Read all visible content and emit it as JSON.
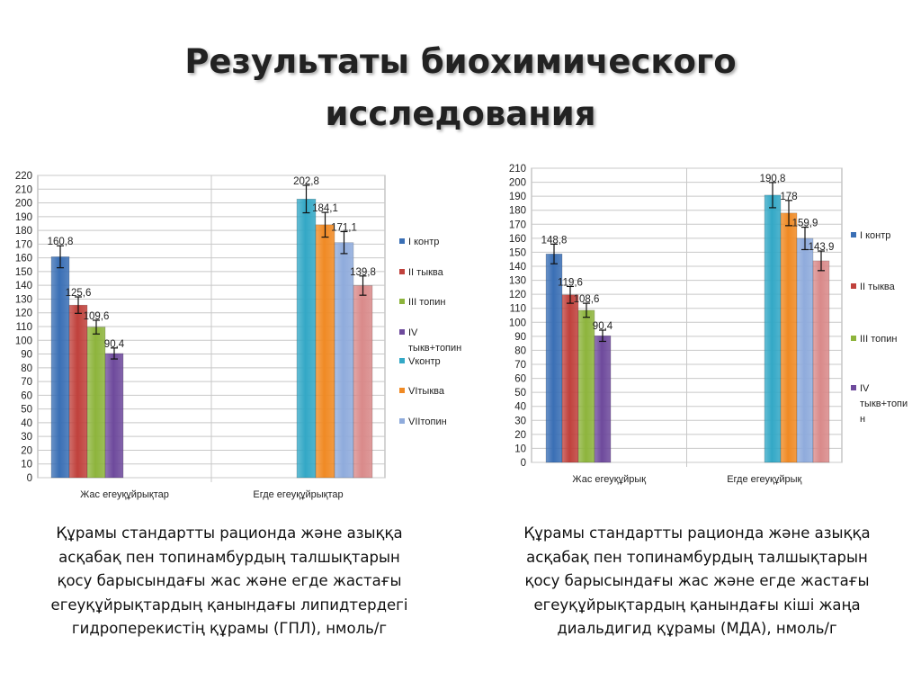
{
  "title": [
    "Результаты биохимического",
    "исследования"
  ],
  "chart_data": [
    {
      "type": "bar",
      "categories": [
        "Жас егеуқұйрықтар",
        "Егде егеуқұйрықтар"
      ],
      "ylim": [
        0,
        220
      ],
      "ytick_step": 10,
      "grid": true,
      "legend_position": "right",
      "legend": [
        {
          "label": "I контр",
          "color": "#3a6fb5"
        },
        {
          "label": "II тыква",
          "color": "#c0413c"
        },
        {
          "label": "III топин",
          "color": "#8db43c"
        },
        {
          "label": "IV тыкв+топин",
          "color": "#6e4a9c"
        },
        {
          "label": "Vконтр",
          "color": "#33a8c6"
        },
        {
          "label": "VIтыква",
          "color": "#f08a24"
        },
        {
          "label": "VIIтопин",
          "color": "#8fabdc"
        }
      ],
      "bars": [
        {
          "category": 0,
          "value": 160.8,
          "label": "160,8",
          "error": 8,
          "color": "#3a6fb5"
        },
        {
          "category": 0,
          "value": 125.6,
          "label": "125,6",
          "error": 6,
          "color": "#c0413c"
        },
        {
          "category": 0,
          "value": 109.6,
          "label": "109,6",
          "error": 5,
          "color": "#8db43c"
        },
        {
          "category": 0,
          "value": 90.4,
          "label": "90,4",
          "error": 4,
          "color": "#6e4a9c"
        },
        {
          "category": 1,
          "value": 202.8,
          "label": "202,8",
          "error": 10,
          "color": "#33a8c6"
        },
        {
          "category": 1,
          "value": 184.1,
          "label": "184,1",
          "error": 9,
          "color": "#f08a24"
        },
        {
          "category": 1,
          "value": 171.1,
          "label": "171,1",
          "error": 8,
          "color": "#8fabdc"
        },
        {
          "category": 1,
          "value": 139.8,
          "label": "139,8",
          "error": 7,
          "color": "#d98a8a"
        }
      ]
    },
    {
      "type": "bar",
      "categories": [
        "Жас егеуқұйрық",
        "Егде егеуқұйрық"
      ],
      "ylim": [
        0,
        210
      ],
      "ytick_step": 10,
      "grid": true,
      "legend_position": "right",
      "legend": [
        {
          "label": "I контр",
          "color": "#3a6fb5"
        },
        {
          "label": "II тыква",
          "color": "#c0413c"
        },
        {
          "label": "III топин",
          "color": "#8db43c"
        },
        {
          "label": "IV тыкв+топин",
          "color": "#6e4a9c"
        }
      ],
      "bars": [
        {
          "category": 0,
          "value": 148.8,
          "label": "148,8",
          "error": 7,
          "color": "#3a6fb5"
        },
        {
          "category": 0,
          "value": 119.6,
          "label": "119,6",
          "error": 6,
          "color": "#c0413c"
        },
        {
          "category": 0,
          "value": 108.6,
          "label": "108,6",
          "error": 5,
          "color": "#8db43c"
        },
        {
          "category": 0,
          "value": 90.4,
          "label": "90,4",
          "error": 4,
          "color": "#6e4a9c"
        },
        {
          "category": 1,
          "value": 190.8,
          "label": "190,8",
          "error": 9,
          "color": "#33a8c6"
        },
        {
          "category": 1,
          "value": 178,
          "label": "178",
          "error": 9,
          "color": "#f08a24"
        },
        {
          "category": 1,
          "value": 159.9,
          "label": "159,9",
          "error": 8,
          "color": "#8fabdc"
        },
        {
          "category": 1,
          "value": 143.9,
          "label": "143,9",
          "error": 7,
          "color": "#d98a8a"
        }
      ]
    }
  ],
  "captions": [
    [
      "Құрамы стандартты рационда және азыққа",
      "асқабақ пен топинамбурдың талшықтарын",
      "қосу барысындағы жас және егде жастағы",
      "егеуқұйрықтардың қанындағы липидтердегі",
      "гидроперекистің құрамы (ГПЛ), нмоль/г"
    ],
    [
      "Құрамы стандартты рационда және азыққа",
      "асқабақ пен топинамбурдың талшықтарын",
      "қосу барысындағы жас және егде жастағы",
      "егеуқұйрықтардың қанындағы кіші жаңа",
      "диальдигид құрамы (МДА), нмоль/г"
    ]
  ]
}
